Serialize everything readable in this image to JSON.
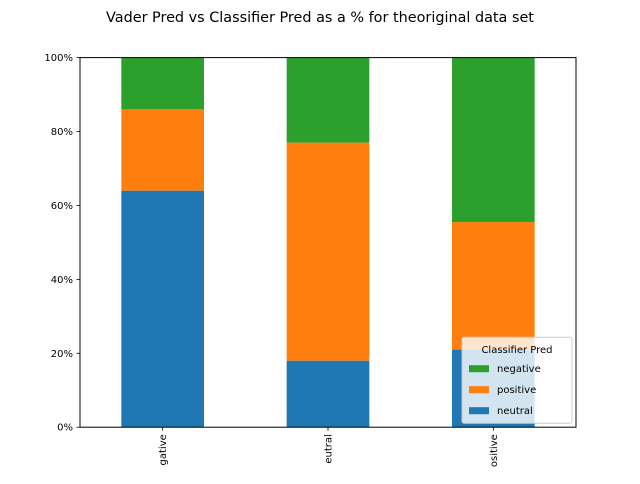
{
  "chart_data": {
    "type": "bar",
    "stacked": true,
    "title": "Vader Pred vs Classifier Pred as a % for theoriginal data set",
    "xlabel": "",
    "ylabel": "",
    "categories": [
      "negative",
      "neutral",
      "positive"
    ],
    "category_tick_labels": [
      "gative",
      "eutral",
      "ositive"
    ],
    "ylim": [
      0,
      1
    ],
    "y_ticks": [
      {
        "value": 0.0,
        "label": "0%"
      },
      {
        "value": 0.2,
        "label": "20%"
      },
      {
        "value": 0.4,
        "label": "40%"
      },
      {
        "value": 0.6,
        "label": "60%"
      },
      {
        "value": 0.8,
        "label": "80%"
      },
      {
        "value": 1.0,
        "label": "100%"
      }
    ],
    "grid": false,
    "series": [
      {
        "name": "neutral",
        "color": "#1f77b4",
        "values": [
          0.64,
          0.18,
          0.21
        ]
      },
      {
        "name": "positive",
        "color": "#ff7f0e",
        "values": [
          0.22,
          0.59,
          0.345
        ]
      },
      {
        "name": "negative",
        "color": "#2ca02c",
        "values": [
          0.14,
          0.23,
          0.445
        ]
      }
    ],
    "legend": {
      "title": "Classifier Pred",
      "placement": "lower-right",
      "entries_order": [
        "negative",
        "positive",
        "neutral"
      ]
    }
  }
}
